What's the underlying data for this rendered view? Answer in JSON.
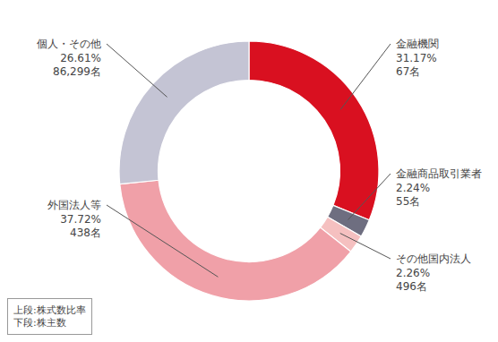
{
  "chart_data": {
    "type": "donut",
    "categories": [
      "金融機関",
      "金融商品取引業者",
      "その他国内法人",
      "外国法人等",
      "個人・その他"
    ],
    "values": [
      31.17,
      2.24,
      2.26,
      37.72,
      26.61
    ],
    "value_labels": [
      "31.17%",
      "2.24%",
      "2.26%",
      "37.72%",
      "26.61%"
    ],
    "counts": [
      67,
      55,
      496,
      438,
      86299
    ],
    "count_labels": [
      "67名",
      "55名",
      "496名",
      "438名",
      "86,299名"
    ],
    "colors": [
      "#d91020",
      "#6e6e80",
      "#f5c0c0",
      "#f0a0a8",
      "#c4c4d4"
    ],
    "annotations": [
      "上段:株式数比率",
      "下段:株主数"
    ],
    "data_labels": true
  }
}
